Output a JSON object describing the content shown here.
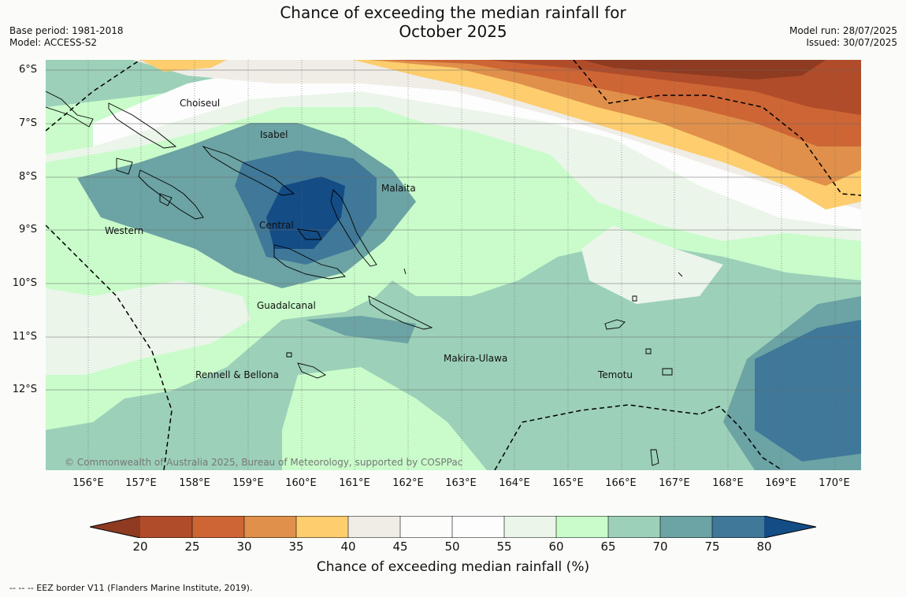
{
  "header": {
    "title_line1": "Chance of exceeding the median rainfall for",
    "title_line2": "October 2025",
    "base_period": "Base period: 1981-2018",
    "model": "Model: ACCESS-S2",
    "model_run": "Model run: 28/07/2025",
    "issued": "Issued: 30/07/2025"
  },
  "map": {
    "lat_labels": [
      "6°S",
      "7°S",
      "8°S",
      "9°S",
      "10°S",
      "11°S",
      "12°S"
    ],
    "lon_labels": [
      "156°E",
      "157°E",
      "158°E",
      "159°E",
      "160°E",
      "161°E",
      "162°E",
      "163°E",
      "164°E",
      "165°E",
      "166°E",
      "167°E",
      "168°E",
      "169°E",
      "170°E"
    ],
    "regions": [
      "Choiseul",
      "Isabel",
      "Malaita",
      "Western",
      "Central",
      "Guadalcanal",
      "Makira-Ulawa",
      "Rennell & Bellona",
      "Temotu"
    ],
    "copyright": "© Commonwealth of Australia 2025, Bureau of Meteorology, supported by COSPPac"
  },
  "colorbar": {
    "ticks": [
      "20",
      "25",
      "30",
      "35",
      "40",
      "45",
      "50",
      "55",
      "60",
      "65",
      "70",
      "75",
      "80"
    ],
    "colors": [
      "#8e3b21",
      "#b14c2a",
      "#cd6535",
      "#e0904a",
      "#fdcd6e",
      "#f0ede7",
      "#fcfdfb",
      "#fdfdfd",
      "#ebf5ea",
      "#c9fcca",
      "#9cd0b9",
      "#6ca3a4",
      "#3f7898",
      "#144c85"
    ],
    "label": "Chance of exceeding median rainfall (%)"
  },
  "footer": {
    "eez_note": "--  --  -- EEZ border V11 (Flanders Marine Institute, 2019)."
  }
}
